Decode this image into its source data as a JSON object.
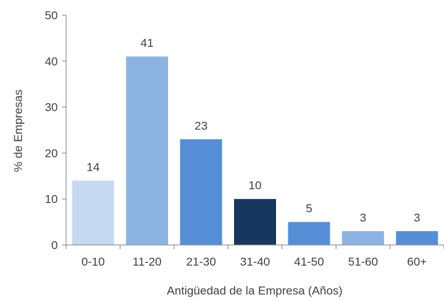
{
  "chart_data": {
    "type": "bar",
    "title": "",
    "xlabel": "Antigüedad de la Empresa (Años)",
    "ylabel": "% de Empresas",
    "categories": [
      "0-10",
      "11-20",
      "21-30",
      "31-40",
      "41-50",
      "51-60",
      "60+"
    ],
    "values": [
      14,
      41,
      23,
      10,
      5,
      3,
      3
    ],
    "data_labels": [
      "14",
      "41",
      "23",
      "10",
      "5",
      "3",
      "3"
    ],
    "ylim": [
      0,
      50
    ],
    "yticks": [
      "0",
      "10",
      "20",
      "30",
      "40",
      "50"
    ],
    "grid": false,
    "legend": "none",
    "bar_colors": [
      "#c6d9f0",
      "#8db3e2",
      "#558ed5",
      "#17375e",
      "#558ed5",
      "#8db3e2",
      "#558ed5"
    ],
    "axis_color": "#808080",
    "text_color": "#404040"
  }
}
